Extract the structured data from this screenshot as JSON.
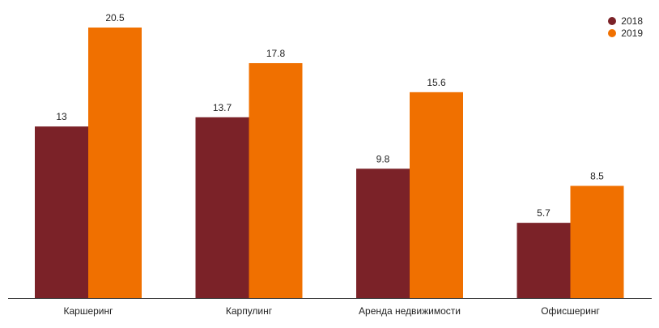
{
  "chart_data": {
    "type": "bar",
    "title": "",
    "xlabel": "",
    "ylabel": "",
    "categories": [
      "Каршеринг",
      "Карпулинг",
      "Аренда недвижимости",
      "Офисшеринг"
    ],
    "series": [
      {
        "name": "2018",
        "values": [
          13,
          13.7,
          9.8,
          5.7
        ],
        "value_labels": [
          "13",
          "13.7",
          "9.8",
          "5.7"
        ],
        "color": "#7b2228"
      },
      {
        "name": "2019",
        "values": [
          20.5,
          17.8,
          15.6,
          8.5
        ],
        "value_labels": [
          "20.5",
          "17.8",
          "15.6",
          "8.5"
        ],
        "color": "#f07000"
      }
    ],
    "ylim": [
      0,
      20.5
    ],
    "grid": false,
    "legend_position": "top-right",
    "show_y_axis": false,
    "show_data_labels": true
  }
}
